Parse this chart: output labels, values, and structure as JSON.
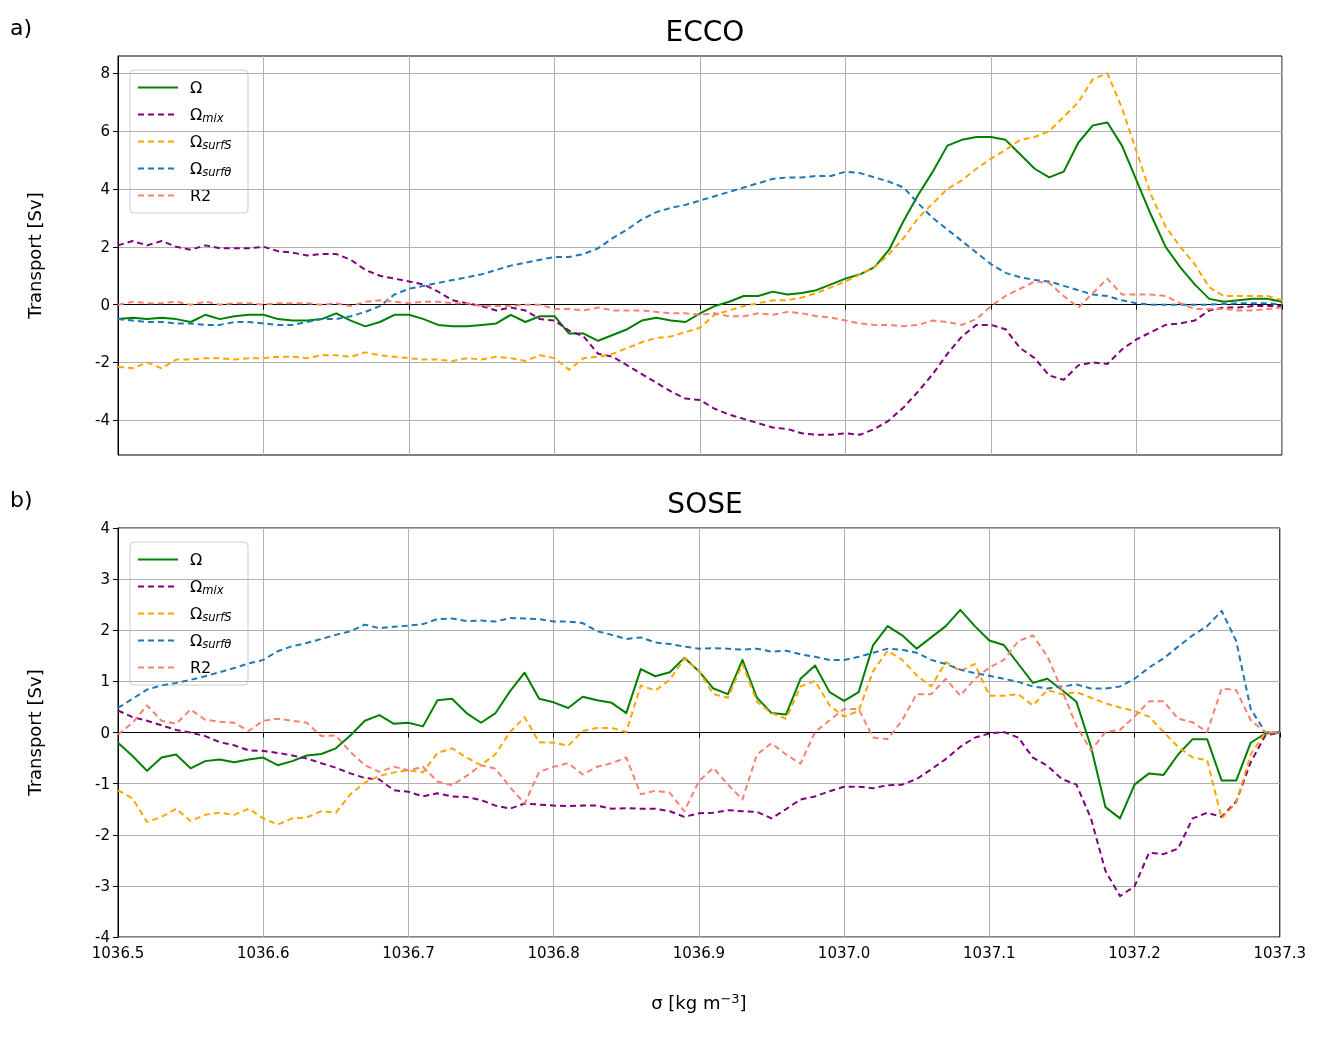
{
  "chart_data": [
    {
      "type": "line",
      "title": "ECCO",
      "ylabel": "Transport [Sv]",
      "annotations": [
        "a)"
      ],
      "legend": "top left",
      "grid": true,
      "tick_labels": "y",
      "xlim": [
        1036.5,
        1037.3
      ],
      "xticks": [
        1036.5,
        1036.6,
        1036.7,
        1036.8,
        1036.9,
        1037,
        1037.1,
        1037.2,
        1037.3
      ],
      "ylim": [
        -5.2,
        8.6
      ],
      "yticks": [
        -4,
        -2,
        0,
        2,
        4,
        6,
        8
      ],
      "x": [
        1036.5,
        1036.51,
        1036.52,
        1036.53,
        1036.54,
        1036.55,
        1036.56,
        1036.57,
        1036.58,
        1036.59,
        1036.6,
        1036.61,
        1036.62,
        1036.63,
        1036.64,
        1036.65,
        1036.66,
        1036.67,
        1036.68,
        1036.69,
        1036.7,
        1036.71,
        1036.72,
        1036.73,
        1036.74,
        1036.75,
        1036.76,
        1036.77,
        1036.78,
        1036.79,
        1036.8,
        1036.81,
        1036.82,
        1036.83,
        1036.84,
        1036.85,
        1036.86,
        1036.87,
        1036.88,
        1036.89,
        1036.9,
        1036.91,
        1036.92,
        1036.93,
        1036.94,
        1036.95,
        1036.96,
        1036.97,
        1036.98,
        1036.99,
        1037.0,
        1037.01,
        1037.02,
        1037.03,
        1037.04,
        1037.05,
        1037.06,
        1037.07,
        1037.08,
        1037.09,
        1037.1,
        1037.11,
        1037.12,
        1037.13,
        1037.14,
        1037.15,
        1037.16,
        1037.17,
        1037.18,
        1037.19,
        1037.2,
        1037.21,
        1037.22,
        1037.23,
        1037.24,
        1037.25,
        1037.26,
        1037.27,
        1037.28,
        1037.29,
        1037.3
      ],
      "series": [
        {
          "name": "Ω",
          "color": "#008000",
          "line_style": "solid",
          "values": [
            -0.5,
            -0.45,
            -0.5,
            -0.45,
            -0.5,
            -0.6,
            -0.35,
            -0.5,
            -0.4,
            -0.35,
            -0.35,
            -0.5,
            -0.55,
            -0.55,
            -0.5,
            -0.3,
            -0.55,
            -0.75,
            -0.6,
            -0.35,
            -0.35,
            -0.5,
            -0.7,
            -0.75,
            -0.75,
            -0.7,
            -0.65,
            -0.35,
            -0.6,
            -0.4,
            -0.4,
            -1.0,
            -1.0,
            -1.25,
            -1.05,
            -0.85,
            -0.55,
            -0.45,
            -0.55,
            -0.6,
            -0.3,
            -0.05,
            0.1,
            0.3,
            0.3,
            0.45,
            0.35,
            0.4,
            0.5,
            0.7,
            0.9,
            1.05,
            1.3,
            1.9,
            2.9,
            3.8,
            4.6,
            5.5,
            5.7,
            5.8,
            5.8,
            5.7,
            5.2,
            4.7,
            4.4,
            4.6,
            5.6,
            6.2,
            6.3,
            5.5,
            4.3,
            3.1,
            2.0,
            1.3,
            0.7,
            0.2,
            0.1,
            0.15,
            0.2,
            0.2,
            0.1
          ]
        },
        {
          "name": "Ω$_{mix}$",
          "color": "#800080",
          "line_style": "dashed",
          "values": [
            2.05,
            2.2,
            2.05,
            2.2,
            2.0,
            1.9,
            2.05,
            1.95,
            1.95,
            1.95,
            2.0,
            1.85,
            1.8,
            1.7,
            1.75,
            1.75,
            1.55,
            1.2,
            1.0,
            0.9,
            0.8,
            0.7,
            0.45,
            0.15,
            0.05,
            -0.05,
            -0.2,
            -0.1,
            -0.2,
            -0.5,
            -0.55,
            -0.9,
            -1.1,
            -1.7,
            -1.8,
            -2.1,
            -2.4,
            -2.7,
            -3.0,
            -3.25,
            -3.3,
            -3.6,
            -3.8,
            -3.95,
            -4.1,
            -4.25,
            -4.3,
            -4.45,
            -4.5,
            -4.5,
            -4.45,
            -4.5,
            -4.3,
            -4.0,
            -3.55,
            -3.0,
            -2.4,
            -1.7,
            -1.1,
            -0.7,
            -0.7,
            -0.85,
            -1.5,
            -1.85,
            -2.45,
            -2.6,
            -2.1,
            -2.0,
            -2.05,
            -1.55,
            -1.2,
            -0.95,
            -0.7,
            -0.65,
            -0.55,
            -0.2,
            -0.1,
            -0.1,
            -0.05,
            -0.05,
            -0.05
          ]
        },
        {
          "name": "Ω$_{surfS}$",
          "color": "#ffa500",
          "line_style": "dashed",
          "values": [
            -2.15,
            -2.2,
            -2.0,
            -2.2,
            -1.9,
            -1.9,
            -1.85,
            -1.85,
            -1.9,
            -1.85,
            -1.85,
            -1.8,
            -1.8,
            -1.85,
            -1.75,
            -1.75,
            -1.8,
            -1.65,
            -1.75,
            -1.8,
            -1.85,
            -1.9,
            -1.9,
            -1.95,
            -1.85,
            -1.9,
            -1.8,
            -1.85,
            -1.95,
            -1.75,
            -1.85,
            -2.25,
            -1.85,
            -1.8,
            -1.7,
            -1.5,
            -1.3,
            -1.15,
            -1.1,
            -0.95,
            -0.8,
            -0.35,
            -0.2,
            -0.05,
            0.05,
            0.15,
            0.15,
            0.25,
            0.4,
            0.6,
            0.8,
            1.05,
            1.3,
            1.75,
            2.3,
            3.0,
            3.5,
            4.0,
            4.3,
            4.7,
            5.05,
            5.35,
            5.7,
            5.8,
            6.0,
            6.5,
            7.0,
            7.8,
            8.0,
            6.8,
            5.3,
            3.8,
            2.7,
            2.0,
            1.4,
            0.6,
            0.3,
            0.3,
            0.3,
            0.3,
            0.15
          ]
        },
        {
          "name": "Ω$_{surfθ}$",
          "color": "#1f77b4",
          "line_style": "dashed",
          "values": [
            -0.5,
            -0.55,
            -0.6,
            -0.6,
            -0.65,
            -0.65,
            -0.7,
            -0.7,
            -0.6,
            -0.6,
            -0.65,
            -0.7,
            -0.7,
            -0.6,
            -0.5,
            -0.5,
            -0.4,
            -0.25,
            -0.05,
            0.35,
            0.55,
            0.65,
            0.75,
            0.85,
            0.95,
            1.05,
            1.2,
            1.35,
            1.45,
            1.55,
            1.65,
            1.65,
            1.75,
            1.95,
            2.3,
            2.6,
            2.95,
            3.2,
            3.35,
            3.45,
            3.6,
            3.75,
            3.9,
            4.05,
            4.2,
            4.35,
            4.4,
            4.4,
            4.45,
            4.45,
            4.6,
            4.55,
            4.4,
            4.25,
            4.05,
            3.5,
            3.0,
            2.6,
            2.2,
            1.8,
            1.4,
            1.1,
            0.95,
            0.85,
            0.8,
            0.65,
            0.5,
            0.35,
            0.3,
            0.15,
            0.05,
            0.0,
            0.0,
            0.0,
            0.0,
            0.0,
            0.02,
            0.05,
            0.05,
            0.05,
            0.0
          ]
        },
        {
          "name": "R2",
          "color": "#fa8072",
          "line_style": "dashed",
          "values": [
            0.0,
            0.1,
            0.05,
            0.05,
            0.1,
            0.0,
            0.1,
            0.0,
            0.05,
            0.05,
            0.0,
            0.05,
            0.05,
            0.05,
            0.0,
            0.05,
            -0.05,
            0.1,
            0.15,
            0.1,
            0.05,
            0.1,
            0.1,
            0.05,
            0.05,
            -0.05,
            -0.05,
            -0.05,
            0.0,
            0.0,
            -0.15,
            -0.15,
            -0.2,
            -0.1,
            -0.2,
            -0.2,
            -0.2,
            -0.25,
            -0.3,
            -0.3,
            -0.35,
            -0.3,
            -0.4,
            -0.4,
            -0.3,
            -0.35,
            -0.25,
            -0.3,
            -0.4,
            -0.45,
            -0.55,
            -0.65,
            -0.7,
            -0.7,
            -0.75,
            -0.7,
            -0.55,
            -0.6,
            -0.7,
            -0.5,
            -0.05,
            0.3,
            0.55,
            0.8,
            0.75,
            0.3,
            -0.1,
            0.4,
            0.9,
            0.35,
            0.35,
            0.35,
            0.3,
            0.05,
            -0.15,
            -0.15,
            -0.15,
            -0.2,
            -0.2,
            -0.15,
            -0.1
          ]
        }
      ]
    },
    {
      "type": "line",
      "title": "SOSE",
      "ylabel": "Transport [Sv]",
      "xlabel": "σ [kg m$^{−3}$]",
      "annotations": [
        "b)"
      ],
      "legend": "top left",
      "grid": true,
      "xlim": [
        1036.5,
        1037.3
      ],
      "xticks": [
        1036.5,
        1036.6,
        1036.7,
        1036.8,
        1036.9,
        {
          "value": 1037.0,
          "label": "1037.0"
        },
        1037.1,
        1037.2,
        1037.3
      ],
      "ylim": [
        -4,
        4
      ],
      "yticks": [
        -4,
        -3,
        -2,
        -1,
        0,
        1,
        2,
        3,
        4
      ],
      "x": [
        1036.5,
        1036.51,
        1036.52,
        1036.53,
        1036.54,
        1036.55,
        1036.56,
        1036.57,
        1036.58,
        1036.59,
        1036.6,
        1036.61,
        1036.62,
        1036.63,
        1036.64,
        1036.65,
        1036.66,
        1036.67,
        1036.68,
        1036.69,
        1036.7,
        1036.71,
        1036.72,
        1036.73,
        1036.74,
        1036.75,
        1036.76,
        1036.77,
        1036.78,
        1036.79,
        1036.8,
        1036.81,
        1036.82,
        1036.83,
        1036.84,
        1036.85,
        1036.86,
        1036.87,
        1036.88,
        1036.89,
        1036.9,
        1036.91,
        1036.92,
        1036.93,
        1036.94,
        1036.95,
        1036.96,
        1036.97,
        1036.98,
        1036.99,
        1037.0,
        1037.01,
        1037.02,
        1037.03,
        1037.04,
        1037.05,
        1037.06,
        1037.07,
        1037.08,
        1037.09,
        1037.1,
        1037.11,
        1037.12,
        1037.13,
        1037.14,
        1037.15,
        1037.16,
        1037.17,
        1037.18,
        1037.19,
        1037.2,
        1037.21,
        1037.22,
        1037.23,
        1037.24,
        1037.25,
        1037.26,
        1037.27,
        1037.28,
        1037.29,
        1037.3
      ],
      "series": [
        {
          "name": "Ω",
          "color": "#008000",
          "line_style": "solid",
          "values": [
            -0.2,
            -0.46,
            -0.75,
            -0.49,
            -0.43,
            -0.7,
            -0.56,
            -0.53,
            -0.58,
            -0.53,
            -0.49,
            -0.64,
            -0.56,
            -0.45,
            -0.42,
            -0.31,
            -0.06,
            0.23,
            0.34,
            0.17,
            0.19,
            0.12,
            0.63,
            0.66,
            0.38,
            0.19,
            0.38,
            0.81,
            1.17,
            0.66,
            0.59,
            0.48,
            0.7,
            0.63,
            0.58,
            0.38,
            1.24,
            1.1,
            1.18,
            1.46,
            1.2,
            0.86,
            0.75,
            1.42,
            0.68,
            0.38,
            0.35,
            1.05,
            1.31,
            0.79,
            0.62,
            0.79,
            1.71,
            2.08,
            1.9,
            1.64,
            1.86,
            2.08,
            2.4,
            2.08,
            1.8,
            1.71,
            1.34,
            0.97,
            1.05,
            0.83,
            0.6,
            -0.28,
            -1.46,
            -1.68,
            -1.02,
            -0.8,
            -0.83,
            -0.43,
            -0.13,
            -0.13,
            -0.94,
            -0.94,
            -0.2,
            -0.02,
            0.0
          ]
        },
        {
          "name": "Ω$_{mix}$",
          "color": "#800080",
          "line_style": "dashed",
          "values": [
            0.43,
            0.3,
            0.23,
            0.14,
            0.05,
            0.0,
            -0.07,
            -0.19,
            -0.25,
            -0.35,
            -0.36,
            -0.4,
            -0.45,
            -0.51,
            -0.6,
            -0.69,
            -0.8,
            -0.89,
            -0.92,
            -1.13,
            -1.16,
            -1.25,
            -1.19,
            -1.25,
            -1.26,
            -1.32,
            -1.43,
            -1.49,
            -1.39,
            -1.41,
            -1.43,
            -1.44,
            -1.43,
            -1.43,
            -1.49,
            -1.48,
            -1.49,
            -1.49,
            -1.54,
            -1.65,
            -1.58,
            -1.57,
            -1.52,
            -1.54,
            -1.55,
            -1.68,
            -1.5,
            -1.31,
            -1.25,
            -1.15,
            -1.06,
            -1.06,
            -1.09,
            -1.03,
            -1.02,
            -0.91,
            -0.72,
            -0.52,
            -0.28,
            -0.1,
            -0.02,
            0.01,
            -0.1,
            -0.49,
            -0.65,
            -0.91,
            -1.02,
            -1.68,
            -2.71,
            -3.2,
            -3.01,
            -2.35,
            -2.38,
            -2.27,
            -1.68,
            -1.57,
            -1.65,
            -1.35,
            -0.58,
            -0.06,
            0.0
          ]
        },
        {
          "name": "Ω$_{surfS}$",
          "color": "#ffa500",
          "line_style": "dashed",
          "values": [
            -1.13,
            -1.29,
            -1.75,
            -1.65,
            -1.49,
            -1.73,
            -1.61,
            -1.57,
            -1.61,
            -1.49,
            -1.68,
            -1.8,
            -1.68,
            -1.66,
            -1.54,
            -1.57,
            -1.21,
            -0.98,
            -0.85,
            -0.78,
            -0.74,
            -0.78,
            -0.4,
            -0.31,
            -0.49,
            -0.64,
            -0.42,
            0.01,
            0.3,
            -0.19,
            -0.2,
            -0.26,
            0.03,
            0.09,
            0.09,
            0.01,
            0.92,
            0.82,
            1.03,
            1.45,
            1.2,
            0.75,
            0.68,
            1.34,
            0.6,
            0.38,
            0.27,
            0.9,
            1.01,
            0.53,
            0.31,
            0.42,
            1.2,
            1.6,
            1.42,
            1.12,
            0.9,
            1.38,
            1.2,
            1.34,
            0.72,
            0.72,
            0.75,
            0.53,
            0.83,
            0.75,
            0.79,
            0.68,
            0.57,
            0.49,
            0.42,
            0.31,
            0.01,
            -0.28,
            -0.49,
            -0.54,
            -1.68,
            -1.38,
            -0.43,
            0.0,
            0.0
          ]
        },
        {
          "name": "Ω$_{surfθ}$",
          "color": "#1f77b4",
          "line_style": "dashed",
          "values": [
            0.48,
            0.66,
            0.84,
            0.92,
            0.97,
            1.03,
            1.1,
            1.18,
            1.26,
            1.35,
            1.42,
            1.59,
            1.69,
            1.75,
            1.83,
            1.91,
            1.98,
            2.11,
            2.04,
            2.07,
            2.09,
            2.12,
            2.22,
            2.23,
            2.18,
            2.19,
            2.17,
            2.24,
            2.23,
            2.22,
            2.17,
            2.17,
            2.14,
            1.98,
            1.91,
            1.83,
            1.86,
            1.76,
            1.73,
            1.68,
            1.64,
            1.65,
            1.64,
            1.62,
            1.64,
            1.58,
            1.6,
            1.53,
            1.48,
            1.42,
            1.42,
            1.48,
            1.56,
            1.64,
            1.62,
            1.56,
            1.42,
            1.34,
            1.23,
            1.16,
            1.11,
            1.05,
            0.99,
            0.9,
            0.86,
            0.9,
            0.94,
            0.86,
            0.86,
            0.9,
            1.05,
            1.27,
            1.45,
            1.68,
            1.9,
            2.08,
            2.38,
            1.79,
            0.46,
            0.01,
            0.0
          ]
        },
        {
          "name": "R2",
          "color": "#fa8072",
          "line_style": "dashed",
          "values": [
            -0.04,
            0.19,
            0.53,
            0.23,
            0.17,
            0.45,
            0.25,
            0.21,
            0.19,
            0.03,
            0.23,
            0.27,
            0.23,
            0.19,
            -0.07,
            -0.06,
            -0.38,
            -0.64,
            -0.77,
            -0.67,
            -0.74,
            -0.67,
            -0.96,
            -1.03,
            -0.85,
            -0.64,
            -0.71,
            -1.07,
            -1.39,
            -0.77,
            -0.67,
            -0.6,
            -0.82,
            -0.67,
            -0.6,
            -0.49,
            -1.21,
            -1.14,
            -1.18,
            -1.54,
            -0.95,
            -0.69,
            -1.02,
            -1.31,
            -0.43,
            -0.21,
            -0.43,
            -0.61,
            0.01,
            0.24,
            0.46,
            0.46,
            -0.1,
            -0.13,
            0.24,
            0.75,
            0.75,
            1.05,
            0.72,
            1.05,
            1.27,
            1.42,
            1.79,
            1.9,
            1.49,
            0.83,
            0.13,
            -0.35,
            0.01,
            0.05,
            0.31,
            0.61,
            0.61,
            0.27,
            0.2,
            0.01,
            0.86,
            0.83,
            0.24,
            0.01,
            0.0
          ]
        }
      ]
    }
  ]
}
